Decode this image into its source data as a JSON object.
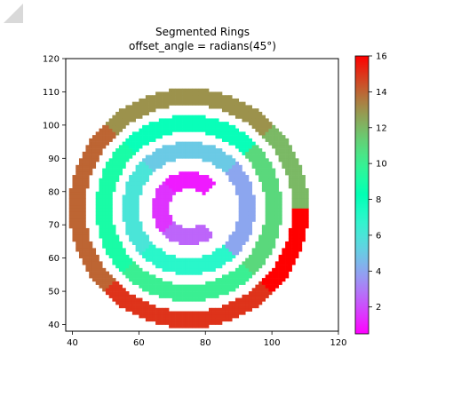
{
  "chart_data": {
    "type": "heatmap",
    "title": "Segmented Rings",
    "subtitle": "offset_angle = radians(45°)",
    "xlabel": "",
    "ylabel": "",
    "xlim": [
      38,
      120
    ],
    "ylim": [
      38,
      120
    ],
    "x_ticks": [
      40,
      60,
      80,
      100,
      120
    ],
    "y_ticks": [
      40,
      50,
      60,
      70,
      80,
      90,
      100,
      110,
      120
    ],
    "grid": false,
    "colormap": "rainbow",
    "colorbar": {
      "range": [
        0.5,
        16
      ],
      "ticks": [
        2,
        4,
        6,
        8,
        10,
        12,
        14,
        16
      ]
    },
    "center": [
      75,
      75
    ],
    "offset_angle_deg": 45,
    "rings": [
      {
        "inner_radius": 6,
        "outer_radius": 11,
        "segments": [
          {
            "start_deg": 45,
            "end_deg": 135,
            "value": 1
          },
          {
            "start_deg": 135,
            "end_deg": 225,
            "value": 1.5
          },
          {
            "start_deg": 225,
            "end_deg": 315,
            "value": 2.5
          },
          {
            "start_deg": 315,
            "end_deg": 405,
            "value": null
          }
        ]
      },
      {
        "inner_radius": 15,
        "outer_radius": 20,
        "segments": [
          {
            "start_deg": 45,
            "end_deg": 135,
            "value": 5
          },
          {
            "start_deg": 135,
            "end_deg": 225,
            "value": 6
          },
          {
            "start_deg": 225,
            "end_deg": 315,
            "value": 7
          },
          {
            "start_deg": 315,
            "end_deg": 405,
            "value": 4
          }
        ]
      },
      {
        "inner_radius": 23,
        "outer_radius": 28,
        "segments": [
          {
            "start_deg": 45,
            "end_deg": 135,
            "value": 8
          },
          {
            "start_deg": 135,
            "end_deg": 225,
            "value": 9
          },
          {
            "start_deg": 225,
            "end_deg": 315,
            "value": 10
          },
          {
            "start_deg": 315,
            "end_deg": 405,
            "value": 11
          }
        ]
      },
      {
        "inner_radius": 31,
        "outer_radius": 36,
        "segments": [
          {
            "start_deg": 0,
            "end_deg": 45,
            "value": 12
          },
          {
            "start_deg": 45,
            "end_deg": 135,
            "value": 13
          },
          {
            "start_deg": 135,
            "end_deg": 225,
            "value": 14
          },
          {
            "start_deg": 225,
            "end_deg": 315,
            "value": 15
          },
          {
            "start_deg": 315,
            "end_deg": 360,
            "value": 16
          }
        ]
      }
    ]
  },
  "colors": {
    "axis": "#000000",
    "background": "#ffffff"
  }
}
